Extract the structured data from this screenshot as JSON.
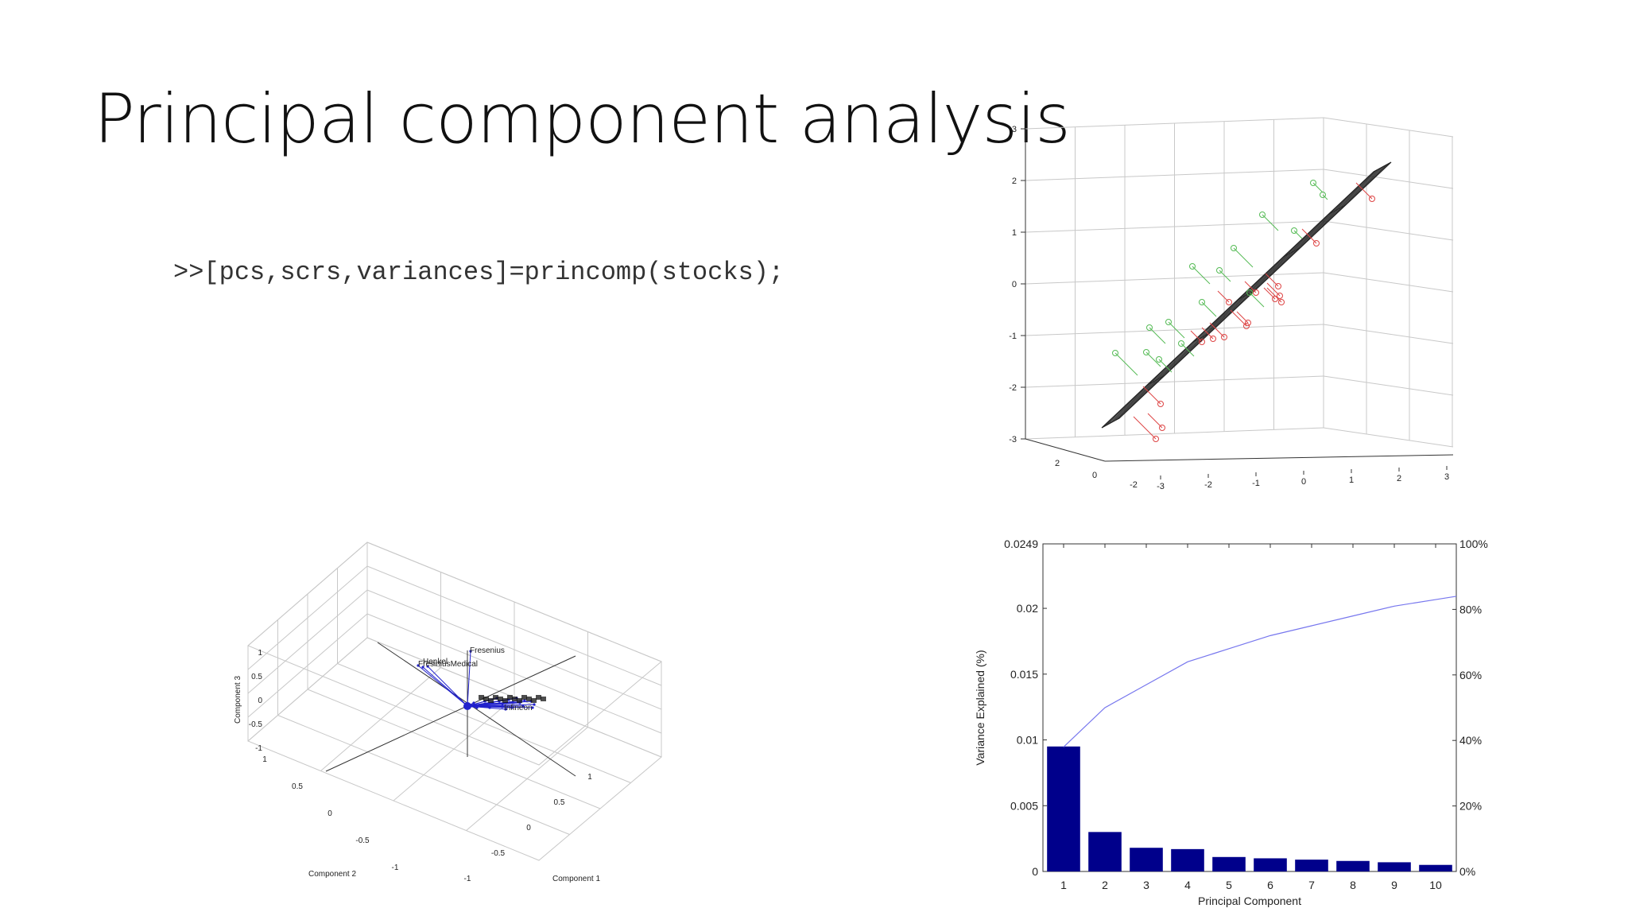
{
  "slide": {
    "title": "Principal component analysis",
    "code": ">>[pcs,scrs,variances]=princomp(stocks);"
  },
  "chart_data": [
    {
      "type": "scatter",
      "dims": 3,
      "zticks": [
        "3",
        "2",
        "1",
        "0",
        "-1",
        "-2",
        "-3"
      ],
      "yticks": [
        "2",
        "0",
        "-2"
      ],
      "xticks": [
        "-3",
        "-2",
        "-1",
        "0",
        "1",
        "2",
        "3"
      ],
      "series": [
        {
          "color": "#55bb55",
          "role": "points above fitted plane"
        },
        {
          "color": "#dd4444",
          "role": "points below fitted plane"
        }
      ],
      "plane_color": "#222222",
      "grid": true
    },
    {
      "type": "scatter",
      "dims": 3,
      "xlabel": "Component 1",
      "ylabel": "Component 2",
      "zlabel": "Component 3",
      "zticks": [
        "1",
        "0.5",
        "0",
        "-0.5",
        "-1"
      ],
      "yticks": [
        "1",
        "0.5",
        "0",
        "-0.5",
        "-1"
      ],
      "xticks": [
        "-1",
        "-0.5",
        "0",
        "0.5",
        "1"
      ],
      "vector_color": "#2222cc",
      "labels": [
        "Fresenius",
        "FresiniusMedical",
        "Henkel",
        "Infineon"
      ],
      "grid": true
    },
    {
      "type": "bar",
      "xlabel": "Principal Component",
      "ylabel": "Variance Explained (%)",
      "categories": [
        "1",
        "2",
        "3",
        "4",
        "5",
        "6",
        "7",
        "8",
        "9",
        "10"
      ],
      "values": [
        0.0095,
        0.003,
        0.0018,
        0.0017,
        0.0011,
        0.001,
        0.0009,
        0.0008,
        0.0007,
        0.0005
      ],
      "ylim": [
        0,
        0.0249
      ],
      "yticks": [
        "0",
        "0.005",
        "0.01",
        "0.015",
        "0.02",
        "0.0249"
      ],
      "y2ticks": [
        "0%",
        "20%",
        "40%",
        "60%",
        "80%",
        "100%"
      ],
      "cumulative_percent": [
        38,
        50,
        57,
        64,
        68,
        72,
        75,
        78,
        81,
        83
      ],
      "bar_color": "#00008b",
      "line_color": "#7777ee",
      "grid": false
    }
  ]
}
